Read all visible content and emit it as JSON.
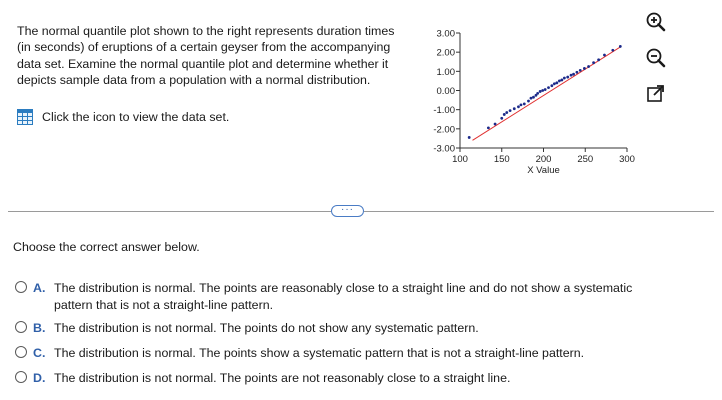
{
  "question": {
    "text": "The normal quantile plot shown to the right represents duration times (in seconds) of eruptions of a certain geyser from the accompanying data set. Examine the normal quantile plot and determine whether it depicts sample data from a population with a normal distribution.",
    "data_link_label": "Click the icon to view the data set."
  },
  "plot_tools": {
    "icons": [
      "zoom-in-icon",
      "zoom-out-icon",
      "expand-icon"
    ]
  },
  "chart_data": {
    "type": "scatter",
    "xlabel": "X Value",
    "ylabel": "",
    "xlim": [
      100,
      300
    ],
    "ylim": [
      -3,
      3
    ],
    "x_ticks": [
      "100",
      "150",
      "200",
      "250",
      "300"
    ],
    "y_ticks": [
      "3.00",
      "2.00",
      "1.00",
      "0.00",
      "-1.00",
      "-2.00",
      "-3.00"
    ],
    "points_color": "#1c2a8a",
    "line_color": "#e03030",
    "line": {
      "x": [
        115,
        293
      ],
      "y": [
        -2.6,
        2.3
      ]
    },
    "points": [
      {
        "x": 111,
        "y": -2.45
      },
      {
        "x": 134,
        "y": -1.95
      },
      {
        "x": 142,
        "y": -1.75
      },
      {
        "x": 150,
        "y": -1.45
      },
      {
        "x": 153,
        "y": -1.25
      },
      {
        "x": 156,
        "y": -1.15
      },
      {
        "x": 160,
        "y": -1.05
      },
      {
        "x": 165,
        "y": -0.95
      },
      {
        "x": 170,
        "y": -0.85
      },
      {
        "x": 173,
        "y": -0.75
      },
      {
        "x": 177,
        "y": -0.7
      },
      {
        "x": 182,
        "y": -0.55
      },
      {
        "x": 185,
        "y": -0.4
      },
      {
        "x": 188,
        "y": -0.35
      },
      {
        "x": 191,
        "y": -0.25
      },
      {
        "x": 193,
        "y": -0.15
      },
      {
        "x": 196,
        "y": -0.05
      },
      {
        "x": 199,
        "y": 0.0
      },
      {
        "x": 202,
        "y": 0.05
      },
      {
        "x": 206,
        "y": 0.15
      },
      {
        "x": 210,
        "y": 0.25
      },
      {
        "x": 213,
        "y": 0.35
      },
      {
        "x": 216,
        "y": 0.4
      },
      {
        "x": 219,
        "y": 0.5
      },
      {
        "x": 222,
        "y": 0.55
      },
      {
        "x": 225,
        "y": 0.65
      },
      {
        "x": 229,
        "y": 0.7
      },
      {
        "x": 233,
        "y": 0.8
      },
      {
        "x": 236,
        "y": 0.85
      },
      {
        "x": 240,
        "y": 0.95
      },
      {
        "x": 244,
        "y": 1.05
      },
      {
        "x": 249,
        "y": 1.15
      },
      {
        "x": 254,
        "y": 1.25
      },
      {
        "x": 260,
        "y": 1.45
      },
      {
        "x": 266,
        "y": 1.6
      },
      {
        "x": 273,
        "y": 1.85
      },
      {
        "x": 283,
        "y": 2.1
      },
      {
        "x": 292,
        "y": 2.3
      }
    ]
  },
  "prompt": "Choose the correct answer below.",
  "options": [
    {
      "letter": "A.",
      "text": "The distribution is normal. The points are reasonably close to a straight line and do not show a systematic pattern that is not a straight-line pattern."
    },
    {
      "letter": "B.",
      "text": "The distribution is not normal. The points do not show any systematic pattern."
    },
    {
      "letter": "C.",
      "text": "The distribution is normal. The points show a systematic pattern that is not a straight-line pattern."
    },
    {
      "letter": "D.",
      "text": "The distribution is not normal. The points are not reasonably close to a straight line."
    }
  ]
}
